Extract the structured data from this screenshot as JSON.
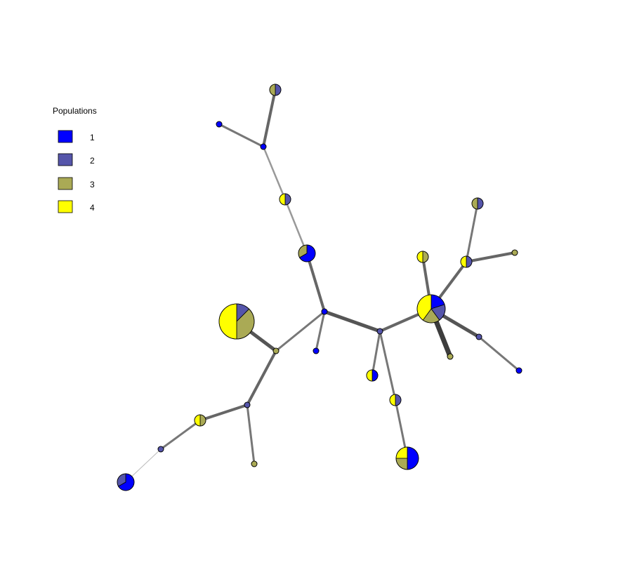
{
  "legend": {
    "title": "Populations",
    "entries": [
      {
        "label": "1",
        "color": "#0000FF"
      },
      {
        "label": "2",
        "color": "#5555AA"
      },
      {
        "label": "3",
        "color": "#AAAA55"
      },
      {
        "label": "4",
        "color": "#FFFF00"
      }
    ]
  },
  "network": {
    "nodes": [
      {
        "id": "n1",
        "weights": [
          0,
          1,
          1,
          0
        ]
      },
      {
        "id": "n2",
        "weights": [
          1,
          0,
          0,
          0
        ]
      },
      {
        "id": "n3",
        "weights": [
          1,
          0,
          0,
          0
        ]
      },
      {
        "id": "n4",
        "weights": [
          0,
          1,
          0,
          1
        ]
      },
      {
        "id": "n5",
        "weights": [
          2,
          0,
          1,
          0
        ]
      },
      {
        "id": "n6",
        "weights": [
          1,
          0,
          0,
          0
        ]
      },
      {
        "id": "n7",
        "weights": [
          1,
          0,
          0,
          0
        ]
      },
      {
        "id": "n8",
        "weights": [
          0,
          1,
          0,
          0
        ]
      },
      {
        "id": "n9",
        "weights": [
          0,
          1,
          3,
          4
        ]
      },
      {
        "id": "n10",
        "weights": [
          0,
          0,
          1,
          0
        ]
      },
      {
        "id": "n11",
        "weights": [
          0,
          1,
          0,
          0
        ]
      },
      {
        "id": "n12",
        "weights": [
          0,
          0,
          1,
          1
        ]
      },
      {
        "id": "n13",
        "weights": [
          0,
          1,
          0,
          0
        ]
      },
      {
        "id": "n14",
        "weights": [
          2,
          1,
          0,
          0
        ]
      },
      {
        "id": "n15",
        "weights": [
          0,
          0,
          1,
          0
        ]
      },
      {
        "id": "n16",
        "weights": [
          1,
          0,
          0,
          1
        ]
      },
      {
        "id": "n17",
        "weights": [
          0,
          1,
          0,
          1
        ]
      },
      {
        "id": "n18",
        "weights": [
          2,
          0,
          1,
          1
        ]
      },
      {
        "id": "n19",
        "weights": [
          1,
          1,
          1,
          2
        ]
      },
      {
        "id": "n20",
        "weights": [
          0,
          0,
          1,
          1
        ]
      },
      {
        "id": "n21",
        "weights": [
          0,
          1,
          0,
          1
        ]
      },
      {
        "id": "n22",
        "weights": [
          0,
          1,
          1,
          0
        ]
      },
      {
        "id": "n23",
        "weights": [
          0,
          0,
          1,
          0
        ]
      },
      {
        "id": "n24",
        "weights": [
          0,
          0,
          1,
          0
        ]
      },
      {
        "id": "n25",
        "weights": [
          0,
          1,
          0,
          0
        ]
      },
      {
        "id": "n26",
        "weights": [
          1,
          0,
          0,
          0
        ]
      }
    ],
    "edges": [
      {
        "from": "n1",
        "to": "n3",
        "weight": 4
      },
      {
        "from": "n2",
        "to": "n3",
        "weight": 3
      },
      {
        "from": "n3",
        "to": "n4",
        "weight": 2
      },
      {
        "from": "n4",
        "to": "n5",
        "weight": 2
      },
      {
        "from": "n5",
        "to": "n6",
        "weight": 4
      },
      {
        "from": "n6",
        "to": "n7",
        "weight": 3
      },
      {
        "from": "n6",
        "to": "n8",
        "weight": 5
      },
      {
        "from": "n6",
        "to": "n10",
        "weight": 3
      },
      {
        "from": "n9",
        "to": "n10",
        "weight": 5
      },
      {
        "from": "n10",
        "to": "n11",
        "weight": 4
      },
      {
        "from": "n11",
        "to": "n12",
        "weight": 4
      },
      {
        "from": "n11",
        "to": "n15",
        "weight": 3
      },
      {
        "from": "n12",
        "to": "n13",
        "weight": 3
      },
      {
        "from": "n13",
        "to": "n14",
        "weight": 1
      },
      {
        "from": "n8",
        "to": "n16",
        "weight": 3
      },
      {
        "from": "n8",
        "to": "n17",
        "weight": 3
      },
      {
        "from": "n17",
        "to": "n18",
        "weight": 3
      },
      {
        "from": "n8",
        "to": "n19",
        "weight": 4
      },
      {
        "from": "n19",
        "to": "n20",
        "weight": 4
      },
      {
        "from": "n19",
        "to": "n21",
        "weight": 4
      },
      {
        "from": "n21",
        "to": "n22",
        "weight": 3
      },
      {
        "from": "n21",
        "to": "n23",
        "weight": 4
      },
      {
        "from": "n19",
        "to": "n24",
        "weight": 7
      },
      {
        "from": "n19",
        "to": "n25",
        "weight": 5
      },
      {
        "from": "n25",
        "to": "n26",
        "weight": 3
      }
    ]
  }
}
